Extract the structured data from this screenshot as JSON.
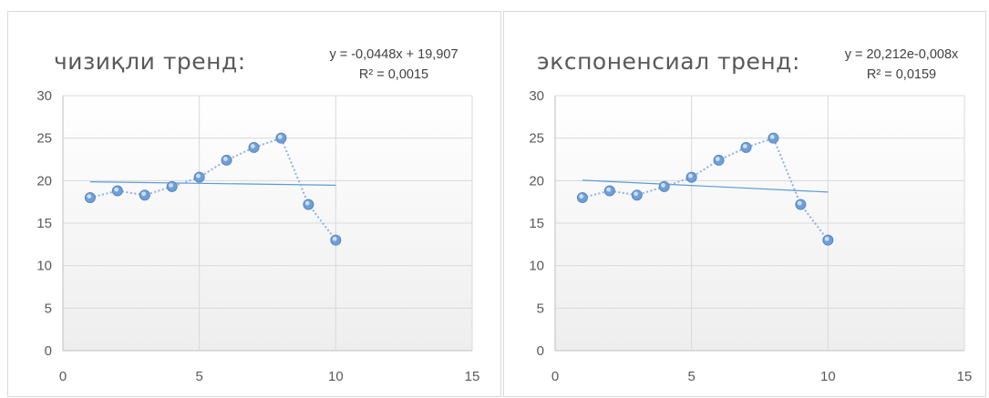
{
  "chart_data": [
    {
      "type": "scatter",
      "title": "чизиқли тренд:",
      "trendline": {
        "kind": "linear",
        "equation": "y = -0,0448x + 19,907",
        "r_squared": "R² = 0,0015",
        "slope": -0.0448,
        "intercept": 19.907
      },
      "x": [
        1,
        2,
        3,
        4,
        5,
        6,
        7,
        8,
        9,
        10
      ],
      "y": [
        18,
        18.8,
        18.3,
        19.3,
        20.4,
        22.4,
        23.9,
        25,
        17.2,
        13
      ],
      "xlim": [
        0,
        15
      ],
      "ylim": [
        0,
        30
      ],
      "x_ticks": [
        "0",
        "5",
        "10",
        "15"
      ],
      "y_ticks": [
        "0",
        "5",
        "10",
        "15",
        "20",
        "25",
        "30"
      ],
      "grid": true,
      "legend": "none"
    },
    {
      "type": "scatter",
      "title": "экспоненсиал тренд:",
      "trendline": {
        "kind": "exponential",
        "equation": "y = 20,212e-0,008x",
        "r_squared": "R² = 0,0159",
        "coefficient": 20.212,
        "exponent": -0.008
      },
      "x": [
        1,
        2,
        3,
        4,
        5,
        6,
        7,
        8,
        9,
        10
      ],
      "y": [
        18,
        18.8,
        18.3,
        19.3,
        20.4,
        22.4,
        23.9,
        25,
        17.2,
        13
      ],
      "xlim": [
        0,
        15
      ],
      "ylim": [
        0,
        30
      ],
      "x_ticks": [
        "0",
        "5",
        "10",
        "15"
      ],
      "y_ticks": [
        "0",
        "5",
        "10",
        "15",
        "20",
        "25",
        "30"
      ],
      "grid": true,
      "legend": "none"
    }
  ],
  "colors": {
    "series_line": "#8fb0dd",
    "marker_fill": "#6f9fd8",
    "marker_stroke": "#d6e4f5",
    "trendline": "#5b9bd5",
    "grid": "#d9d9d9",
    "text": "#595959"
  }
}
